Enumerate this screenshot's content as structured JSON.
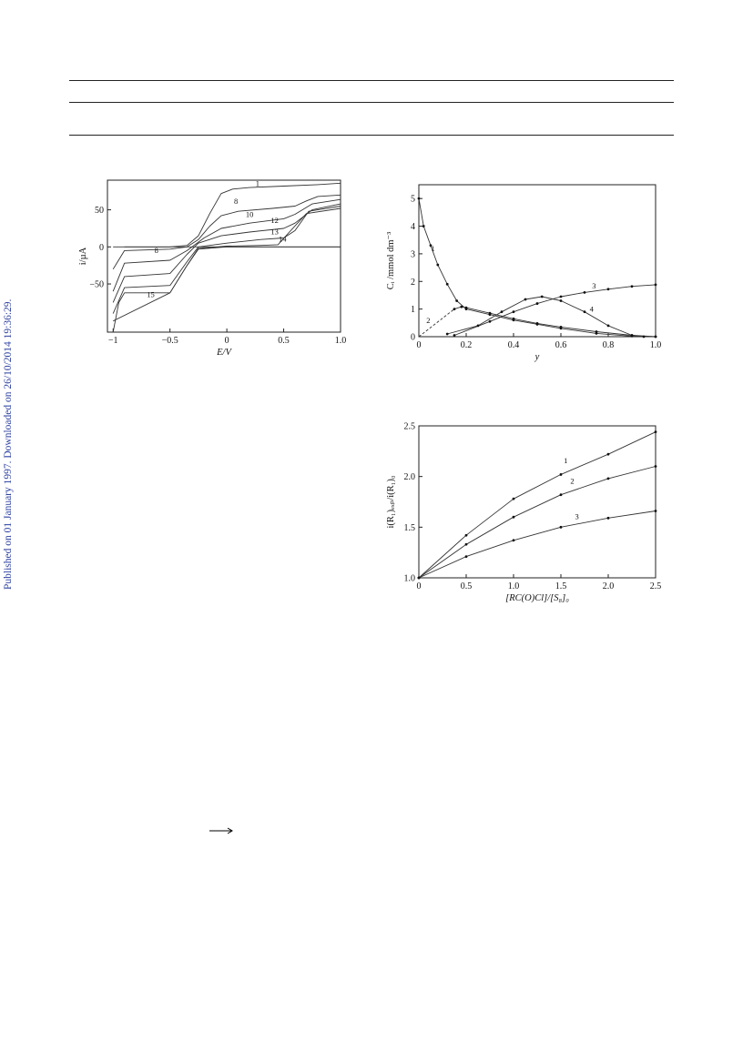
{
  "side_stamp": "Published on 01 January 1997. Downloaded on 26/10/2014 19:36:29.",
  "chart_data": [
    {
      "type": "line",
      "xlabel": "E/V",
      "ylabel": "i/µA",
      "xlim": [
        -1.05,
        1.0
      ],
      "ylim": [
        -115,
        90
      ],
      "xticks": [
        -1,
        -0.5,
        0,
        0.5,
        1.0
      ],
      "xtick_labels": [
        "−1",
        "−0.5",
        "0",
        "0.5",
        "1.0"
      ],
      "yticks": [
        50,
        0,
        -50
      ],
      "ytick_labels": [
        "50",
        "0",
        "−50"
      ],
      "series": [
        {
          "name": "1",
          "label_at": [
            0.27,
            82
          ],
          "x": [
            -1.0,
            -0.9,
            -0.5,
            -0.35,
            -0.25,
            -0.15,
            -0.05,
            0.05,
            0.2,
            0.5,
            0.8,
            1.0
          ],
          "y": [
            0,
            0,
            0,
            2,
            15,
            45,
            72,
            78,
            80,
            82,
            84,
            86
          ]
        },
        {
          "name": "8",
          "label_at": [
            0.08,
            58
          ],
          "x": [
            -1.0,
            -0.9,
            -0.5,
            -0.35,
            -0.25,
            -0.15,
            -0.05,
            0.1,
            0.4,
            0.6,
            0.7,
            0.8,
            1.0
          ],
          "y": [
            -30,
            -5,
            -3,
            0,
            10,
            28,
            42,
            48,
            52,
            55,
            62,
            68,
            70
          ]
        },
        {
          "name": "10",
          "label_at": [
            0.2,
            40
          ],
          "x": [
            -1.0,
            -0.9,
            -0.5,
            -0.35,
            -0.2,
            -0.05,
            0.2,
            0.5,
            0.6,
            0.75,
            1.0
          ],
          "y": [
            -60,
            -22,
            -18,
            -5,
            12,
            25,
            32,
            38,
            44,
            58,
            64
          ]
        },
        {
          "name": "12",
          "label_at": [
            0.42,
            32
          ],
          "x": [
            -1.0,
            -0.9,
            -0.5,
            -0.35,
            -0.25,
            -0.05,
            0.2,
            0.5,
            0.6,
            0.75,
            1.0
          ],
          "y": [
            -75,
            -40,
            -36,
            -10,
            5,
            15,
            20,
            25,
            32,
            50,
            58
          ]
        },
        {
          "name": "13",
          "label_at": [
            0.42,
            17
          ],
          "x": [
            -1.0,
            -0.9,
            -0.5,
            -0.35,
            -0.25,
            0,
            0.3,
            0.5,
            0.6,
            0.72,
            1.0
          ],
          "y": [
            -90,
            -55,
            -52,
            -20,
            0,
            5,
            10,
            12,
            22,
            48,
            55
          ]
        },
        {
          "name": "14",
          "label_at": [
            0.49,
            7
          ],
          "x": [
            -1.0,
            -0.5,
            -0.35,
            -0.25,
            0,
            0.3,
            0.45,
            0.55,
            0.7,
            1.0
          ],
          "y": [
            -100,
            -62,
            -25,
            -2,
            1,
            2,
            3,
            20,
            45,
            52
          ]
        },
        {
          "name": "15",
          "label_at": [
            -0.67,
            -68
          ],
          "x": [
            -1.0,
            -0.95,
            -0.9,
            -0.5,
            -0.35,
            -0.25,
            0,
            0.3,
            0.5,
            1.0
          ],
          "y": [
            -115,
            -75,
            -62,
            -62,
            -25,
            -3,
            0,
            0,
            0,
            0
          ]
        }
      ],
      "annotations": [
        {
          "text": "8",
          "at": [
            -0.62,
            -8
          ]
        }
      ]
    },
    {
      "type": "line",
      "xlabel": "y",
      "ylabel": "Cᵢ /mmol dm⁻³",
      "xlim": [
        0,
        1.0
      ],
      "ylim": [
        0,
        5.5
      ],
      "xticks": [
        0,
        0.2,
        0.4,
        0.6,
        0.8,
        1.0
      ],
      "xtick_labels": [
        "0",
        "0.2",
        "0.4",
        "0.6",
        "0.8",
        "1.0"
      ],
      "yticks": [
        0,
        1,
        2,
        3,
        4,
        5
      ],
      "ytick_labels": [
        "0",
        "1",
        "2",
        "3",
        "4",
        "5"
      ],
      "series": [
        {
          "name": "1",
          "label_at": [
            0.06,
            3.1
          ],
          "x": [
            0,
            0.02,
            0.05,
            0.08,
            0.12,
            0.16,
            0.2,
            0.3,
            0.4,
            0.5,
            0.6,
            0.75,
            0.9,
            1.0
          ],
          "y": [
            5.0,
            4.0,
            3.3,
            2.6,
            1.9,
            1.3,
            1.0,
            0.8,
            0.6,
            0.45,
            0.3,
            0.12,
            0.02,
            0
          ]
        },
        {
          "name": "2",
          "label_at": [
            0.04,
            0.5
          ],
          "x": [
            0.15,
            0.18,
            0.2,
            0.3,
            0.4,
            0.5,
            0.6,
            0.75,
            0.9,
            1.0
          ],
          "y": [
            1.0,
            1.08,
            1.05,
            0.85,
            0.65,
            0.48,
            0.35,
            0.18,
            0.05,
            0
          ]
        },
        {
          "name": "2-dashed",
          "x": [
            0,
            0.15
          ],
          "y": [
            0,
            1.0
          ]
        },
        {
          "name": "3",
          "label_at": [
            0.74,
            1.75
          ],
          "x": [
            0.15,
            0.3,
            0.4,
            0.5,
            0.6,
            0.7,
            0.8,
            0.9,
            1.0
          ],
          "y": [
            0.05,
            0.55,
            0.9,
            1.2,
            1.45,
            1.6,
            1.72,
            1.82,
            1.88
          ]
        },
        {
          "name": "4",
          "label_at": [
            0.73,
            0.9
          ],
          "x": [
            0.12,
            0.25,
            0.35,
            0.45,
            0.52,
            0.6,
            0.7,
            0.8,
            0.9,
            0.95
          ],
          "y": [
            0.1,
            0.4,
            0.9,
            1.35,
            1.45,
            1.3,
            0.9,
            0.4,
            0.05,
            0
          ]
        }
      ]
    },
    {
      "type": "line",
      "xlabel": "[RC(O)Cl]/[S₈]₀",
      "ylabel": "i(R₁)ₑₓₚ/i(R₁)₀",
      "xlim": [
        0,
        2.5
      ],
      "ylim": [
        1.0,
        2.5
      ],
      "xticks": [
        0,
        0.5,
        1.0,
        1.5,
        2.0,
        2.5
      ],
      "xtick_labels": [
        "0",
        "0.5",
        "1.0",
        "1.5",
        "2.0",
        "2.5"
      ],
      "yticks": [
        1.0,
        1.5,
        2.0,
        2.5
      ],
      "ytick_labels": [
        "1.0",
        "1.5",
        "2.0",
        "2.5"
      ],
      "series": [
        {
          "name": "1",
          "label_at": [
            1.55,
            2.13
          ],
          "x": [
            0,
            0.5,
            1.0,
            1.5,
            2.0,
            2.5
          ],
          "y": [
            1.0,
            1.42,
            1.78,
            2.02,
            2.22,
            2.44
          ]
        },
        {
          "name": "2",
          "label_at": [
            1.62,
            1.93
          ],
          "x": [
            0,
            0.5,
            1.0,
            1.5,
            2.0,
            2.5
          ],
          "y": [
            1.0,
            1.33,
            1.6,
            1.82,
            1.98,
            2.1
          ]
        },
        {
          "name": "3",
          "label_at": [
            1.67,
            1.58
          ],
          "x": [
            0,
            0.5,
            1.0,
            1.5,
            2.0,
            2.5
          ],
          "y": [
            1.0,
            1.21,
            1.37,
            1.5,
            1.59,
            1.66
          ]
        }
      ]
    }
  ]
}
